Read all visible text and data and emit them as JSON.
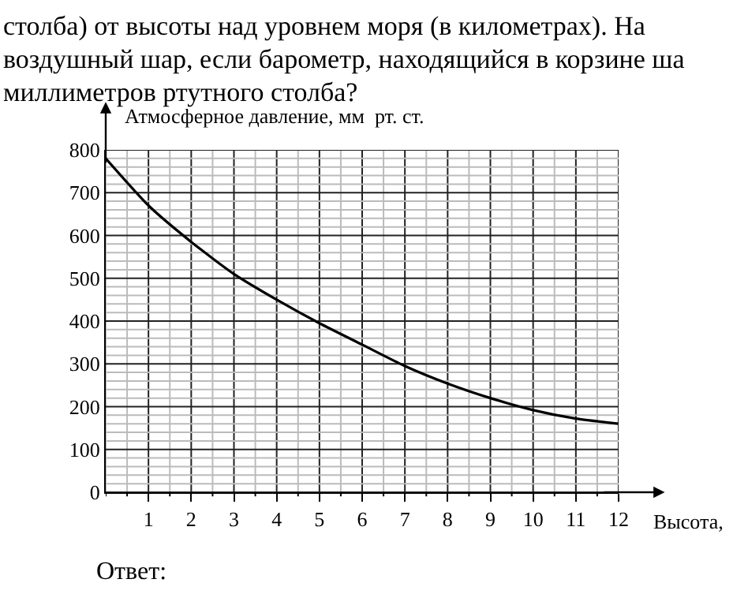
{
  "chart_data": {
    "type": "line",
    "xlabel": "Высота,",
    "ylabel": "Атмосферное давление, мм  рт. ст.",
    "annotations": [
      "столба) от высоты над уровнем моря (в километрах). На",
      "воздушный шар, если барометр, находящийся в корзине ша",
      "миллиметров ртутного столба?",
      "Ответ:"
    ],
    "x": [
      0,
      1,
      2,
      3,
      4,
      5,
      6,
      7,
      8,
      9,
      10,
      11,
      12
    ],
    "series": [
      {
        "color": "#000000",
        "values": [
          780,
          670,
          585,
          510,
          450,
          395,
          345,
          295,
          254,
          220,
          192,
          172,
          160
        ]
      }
    ],
    "xlim": [
      0,
      12
    ],
    "xticks": [
      {
        "value": 0,
        "label": null
      },
      {
        "value": 0.5,
        "label": null
      },
      1,
      {
        "value": 1.5,
        "label": null
      },
      2,
      {
        "value": 2.5,
        "label": null
      },
      3,
      {
        "value": 3.5,
        "label": null
      },
      4,
      {
        "value": 4.5,
        "label": null
      },
      5,
      {
        "value": 5.5,
        "label": null
      },
      6,
      {
        "value": 6.5,
        "label": null
      },
      7,
      {
        "value": 7.5,
        "label": null
      },
      8,
      {
        "value": 8.5,
        "label": null
      },
      9,
      {
        "value": 9.5,
        "label": null
      },
      10,
      {
        "value": 10.5,
        "label": null
      },
      11,
      {
        "value": 11.5,
        "label": null
      },
      12
    ],
    "ylim": [
      0,
      800
    ],
    "yticks": [
      0,
      {
        "value": 20,
        "label": null
      },
      {
        "value": 40,
        "label": null
      },
      {
        "value": 60,
        "label": null
      },
      {
        "value": 80,
        "label": null
      },
      100,
      {
        "value": 120,
        "label": null
      },
      {
        "value": 140,
        "label": null
      },
      {
        "value": 160,
        "label": null
      },
      {
        "value": 180,
        "label": null
      },
      200,
      {
        "value": 220,
        "label": null
      },
      {
        "value": 240,
        "label": null
      },
      {
        "value": 260,
        "label": null
      },
      {
        "value": 280,
        "label": null
      },
      300,
      {
        "value": 320,
        "label": null
      },
      {
        "value": 340,
        "label": null
      },
      {
        "value": 360,
        "label": null
      },
      {
        "value": 380,
        "label": null
      },
      400,
      {
        "value": 420,
        "label": null
      },
      {
        "value": 440,
        "label": null
      },
      {
        "value": 460,
        "label": null
      },
      {
        "value": 480,
        "label": null
      },
      500,
      {
        "value": 520,
        "label": null
      },
      {
        "value": 540,
        "label": null
      },
      {
        "value": 560,
        "label": null
      },
      {
        "value": 580,
        "label": null
      },
      600,
      {
        "value": 620,
        "label": null
      },
      {
        "value": 640,
        "label": null
      },
      {
        "value": 660,
        "label": null
      },
      {
        "value": 680,
        "label": null
      },
      700,
      {
        "value": 720,
        "label": null
      },
      {
        "value": 740,
        "label": null
      },
      {
        "value": 760,
        "label": null
      },
      {
        "value": 780,
        "label": null
      },
      800
    ],
    "grid": true,
    "marker": "none",
    "line_style": "solid"
  }
}
